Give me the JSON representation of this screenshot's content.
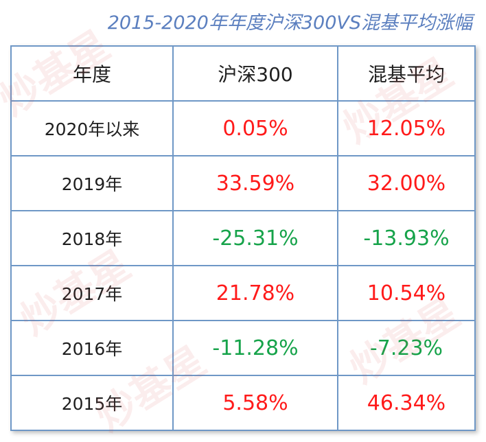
{
  "title": "2015-2020年年度沪深300VS混基平均涨幅",
  "watermark": "炒基星",
  "colors": {
    "positive": "#ff1a1a",
    "negative": "#16a34a",
    "border": "#6e97c6",
    "title": "#5b7fbf"
  },
  "table": {
    "headers": [
      "年度",
      "沪深300",
      "混基平均"
    ],
    "rows": [
      {
        "year": "2020年以来",
        "hs300": "0.05%",
        "hs300_sign": "pos",
        "mix": "12.05%",
        "mix_sign": "pos"
      },
      {
        "year": "2019年",
        "hs300": "33.59%",
        "hs300_sign": "pos",
        "mix": "32.00%",
        "mix_sign": "pos"
      },
      {
        "year": "2018年",
        "hs300": "-25.31%",
        "hs300_sign": "neg",
        "mix": "-13.93%",
        "mix_sign": "neg"
      },
      {
        "year": "2017年",
        "hs300": "21.78%",
        "hs300_sign": "pos",
        "mix": "10.54%",
        "mix_sign": "pos"
      },
      {
        "year": "2016年",
        "hs300": "-11.28%",
        "hs300_sign": "neg",
        "mix": "-7.23%",
        "mix_sign": "neg"
      },
      {
        "year": "2015年",
        "hs300": "5.58%",
        "hs300_sign": "pos",
        "mix": "46.34%",
        "mix_sign": "pos"
      }
    ]
  }
}
